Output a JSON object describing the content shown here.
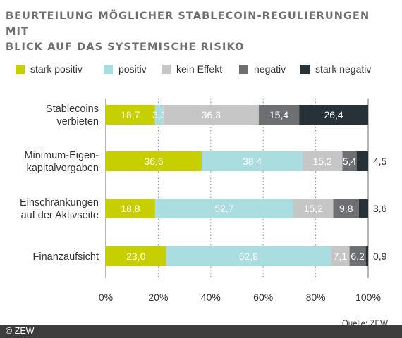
{
  "title_line1": "BEURTEILUNG MÖGLICHER STABLECOIN-REGULIERUNGEN MIT",
  "title_line2": "BLICK AUF DAS SYSTEMISCHE RISIKO",
  "source": "Quelle: ZEW",
  "copyright": "© ZEW",
  "colors": {
    "stark_positiv": "#c8cf00",
    "positiv": "#a9dde0",
    "kein_effekt": "#c6c6c6",
    "negativ": "#6d6f72",
    "stark_negativ": "#263238"
  },
  "chart_data": {
    "type": "bar",
    "orientation": "horizontal",
    "stacked": true,
    "categories": [
      [
        "Stablecoins",
        "verbieten"
      ],
      [
        "Minimum-Eigen-",
        "kapitalvorgaben"
      ],
      [
        "Einschränkungen",
        "auf der Aktivseite"
      ],
      [
        "Finanzaufsicht"
      ]
    ],
    "series": [
      {
        "name": "stark positiv",
        "color": "#c8cf00",
        "values": [
          18.7,
          36.6,
          18.8,
          23.0
        ],
        "labels": [
          "18,7",
          "36,6",
          "18,8",
          "23,0"
        ]
      },
      {
        "name": "positiv",
        "color": "#a9dde0",
        "values": [
          3.3,
          38.4,
          52.7,
          62.8
        ],
        "labels": [
          "3,3",
          "38,4",
          "52,7",
          "62,8"
        ]
      },
      {
        "name": "kein Effekt",
        "color": "#c6c6c6",
        "values": [
          36.3,
          15.2,
          15.2,
          7.1
        ],
        "labels": [
          "36,3",
          "15,2",
          "15,2",
          "7,1"
        ]
      },
      {
        "name": "negativ",
        "color": "#6d6f72",
        "values": [
          15.4,
          5.4,
          9.8,
          6.2
        ],
        "labels": [
          "15,4",
          "5,4",
          "9,8",
          "6,2"
        ]
      },
      {
        "name": "stark negativ",
        "color": "#263238",
        "values": [
          26.4,
          4.5,
          3.6,
          0.9
        ],
        "labels": [
          "26,4",
          "4,5",
          "3,6",
          "0,9"
        ]
      }
    ],
    "xlim": [
      0,
      100
    ],
    "xticks": [
      "0%",
      "20%",
      "40%",
      "60%",
      "80%",
      "100%"
    ],
    "grid": "dotted vertical",
    "legend": "top"
  }
}
